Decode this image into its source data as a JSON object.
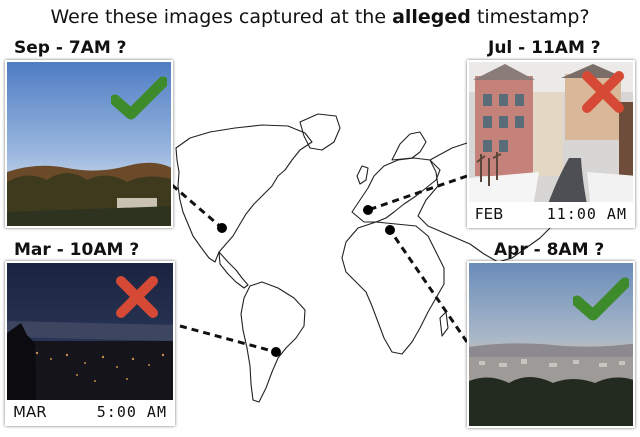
{
  "title": {
    "prefix": "Were these images captured at the",
    "emphasis": "alleged",
    "suffix": "timestamp?"
  },
  "photos": [
    {
      "label": "Sep - 7AM  ?",
      "verdict": "check",
      "month": "",
      "time": ""
    },
    {
      "label": "Jul - 11AM  ?",
      "verdict": "cross",
      "month": "FEB",
      "time": "11:00 AM"
    },
    {
      "label": "Mar - 10AM ?",
      "verdict": "cross",
      "month": "MAR",
      "time": "5:00 AM"
    },
    {
      "label": "Apr - 8AM  ?",
      "verdict": "check",
      "month": "",
      "time": ""
    }
  ],
  "icons": {
    "check": "checkmark-icon",
    "cross": "cross-icon"
  },
  "colors": {
    "check": "#3d8b2a",
    "cross": "#d64a35"
  }
}
